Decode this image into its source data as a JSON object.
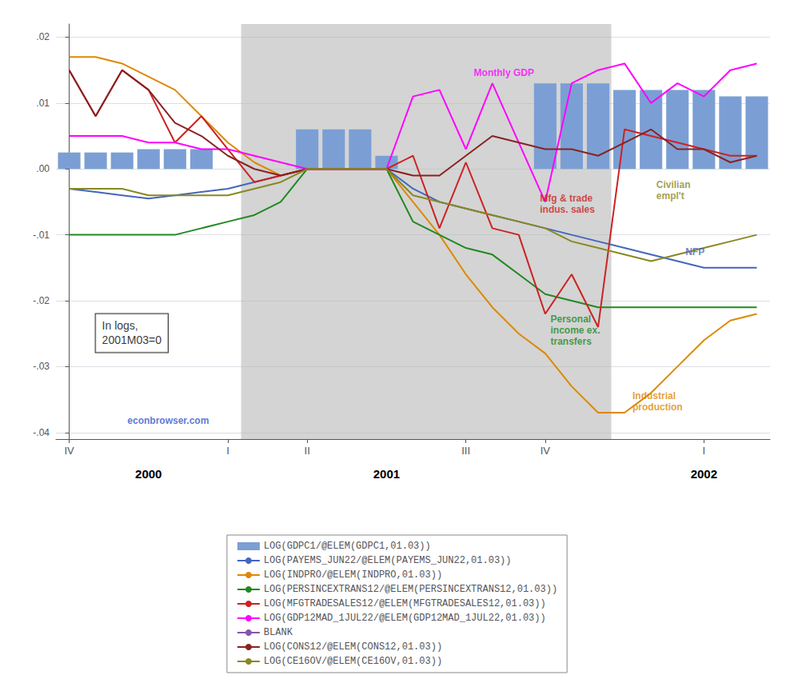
{
  "chart_data": {
    "type": "line",
    "xlim": [
      -0.5,
      26.5
    ],
    "xticks": [
      {
        "value": 0,
        "label": "IV"
      },
      {
        "value": 6,
        "label": "I"
      },
      {
        "value": 9,
        "label": "II"
      },
      {
        "value": 15,
        "label": "III"
      },
      {
        "value": 18,
        "label": "IV"
      },
      {
        "value": 24,
        "label": "I"
      }
    ],
    "x2ticks": [
      {
        "value": 3,
        "label": "2000"
      },
      {
        "value": 12,
        "label": "2001"
      },
      {
        "value": 24,
        "label": "2002"
      }
    ],
    "ylim": [
      -0.041,
      0.022
    ],
    "yticks": [
      {
        "value": -0.04,
        "label": "-.04"
      },
      {
        "value": -0.03,
        "label": "-.03"
      },
      {
        "value": -0.02,
        "label": "-.02"
      },
      {
        "value": -0.01,
        "label": "-.01"
      },
      {
        "value": 0.0,
        "label": ".00"
      },
      {
        "value": 0.01,
        "label": ".01"
      },
      {
        "value": 0.02,
        "label": ".02"
      }
    ],
    "grid": true,
    "legend": "bottom",
    "bands": [
      {
        "from": 6.5,
        "to": 20.5,
        "color": "#b8b8b8"
      }
    ],
    "annotations": [
      {
        "text": "Monthly GDP",
        "x": 15.3,
        "y": 0.0138,
        "color": "#ff00ff"
      },
      {
        "text": "Mfg & trade\nindus. sales",
        "x": 17.8,
        "y": -0.007,
        "color": "#cc2222"
      },
      {
        "text": "Civilian\nempl't",
        "x": 22.2,
        "y": -0.005,
        "color": "#888822"
      },
      {
        "text": "NFP",
        "x": 23.3,
        "y": -0.0135,
        "color": "#4466bb"
      },
      {
        "text": "Personal\nincome ex.\ntransfers",
        "x": 18.2,
        "y": -0.027,
        "color": "#228822"
      },
      {
        "text": "Industrial\nproduction",
        "x": 21.3,
        "y": -0.037,
        "color": "#dd8800"
      },
      {
        "text": "In logs,\n2001M03=0",
        "x": 1.0,
        "y": -0.022
      },
      {
        "text": "econbrowser.com",
        "x": 2.2,
        "y": -0.039,
        "color": "#3355cc"
      }
    ],
    "series": [
      {
        "name": "LOG(GDPC1/@ELEM(GDPC1,01.03))",
        "type": "bar",
        "color": "#7b9fd4",
        "x": [
          0,
          1,
          2,
          3,
          4,
          5,
          9,
          10,
          11,
          12,
          18,
          19,
          20,
          21,
          22,
          23,
          24,
          25,
          26
        ],
        "values": [
          0.0025,
          0.0025,
          0.0025,
          0.003,
          0.003,
          0.003,
          0.006,
          0.006,
          0.006,
          0.002,
          0.013,
          0.013,
          0.013,
          0.012,
          0.012,
          0.012,
          0.012,
          0.011,
          0.011
        ]
      },
      {
        "name": "LOG(PAYEMS_JUN22/@ELEM(PAYEMS_JUN22,01.03))",
        "type": "line",
        "color": "#4466bb",
        "x": [
          0,
          1,
          2,
          3,
          4,
          5,
          6,
          7,
          8,
          9,
          10,
          11,
          12,
          13,
          14,
          15,
          16,
          17,
          18,
          19,
          20,
          21,
          22,
          23,
          24,
          25,
          26
        ],
        "values": [
          -0.003,
          -0.0035,
          -0.004,
          -0.0045,
          -0.004,
          -0.0035,
          -0.003,
          -0.002,
          -0.001,
          0.0,
          0.0,
          0.0,
          0.0,
          -0.003,
          -0.005,
          -0.006,
          -0.007,
          -0.008,
          -0.009,
          -0.01,
          -0.011,
          -0.012,
          -0.013,
          -0.014,
          -0.015,
          -0.015,
          -0.015
        ]
      },
      {
        "name": "LOG(INDPRO/@ELEM(INDPRO,01.03))",
        "type": "line",
        "color": "#dd8800",
        "x": [
          0,
          1,
          2,
          3,
          4,
          5,
          6,
          7,
          8,
          9,
          10,
          11,
          12,
          13,
          14,
          15,
          16,
          17,
          18,
          19,
          20,
          21,
          22,
          23,
          24,
          25,
          26
        ],
        "values": [
          0.017,
          0.017,
          0.016,
          0.014,
          0.012,
          0.008,
          0.004,
          0.001,
          -0.001,
          0.0,
          0.0,
          0.0,
          0.0,
          -0.005,
          -0.01,
          -0.016,
          -0.021,
          -0.025,
          -0.028,
          -0.033,
          -0.037,
          -0.037,
          -0.034,
          -0.03,
          -0.026,
          -0.023,
          -0.022
        ]
      },
      {
        "name": "LOG(PERSINCEXTRANS12/@ELEM(PERSINCEXTRANS12,01.03))",
        "type": "line",
        "color": "#228822",
        "x": [
          0,
          1,
          2,
          3,
          4,
          5,
          6,
          7,
          8,
          9,
          10,
          11,
          12,
          13,
          14,
          15,
          16,
          17,
          18,
          19,
          20,
          21,
          22,
          23,
          24,
          25,
          26
        ],
        "values": [
          -0.01,
          -0.01,
          -0.01,
          -0.01,
          -0.01,
          -0.009,
          -0.008,
          -0.007,
          -0.005,
          0.0,
          0.0,
          0.0,
          0.0,
          -0.008,
          -0.01,
          -0.012,
          -0.013,
          -0.016,
          -0.019,
          -0.02,
          -0.021,
          -0.021,
          -0.021,
          -0.021,
          -0.021,
          -0.021,
          -0.021
        ]
      },
      {
        "name": "LOG(MFGTRADESALES12/@ELEM(MFGTRADESALES12,01.03))",
        "type": "line",
        "color": "#cc2222",
        "x": [
          0,
          1,
          2,
          3,
          4,
          5,
          6,
          7,
          8,
          9,
          10,
          11,
          12,
          13,
          14,
          15,
          16,
          17,
          18,
          19,
          20,
          21,
          22,
          23,
          24,
          25,
          26
        ],
        "values": [
          0.015,
          0.008,
          0.015,
          0.012,
          0.004,
          0.008,
          0.003,
          -0.002,
          -0.001,
          0.0,
          0.0,
          0.0,
          0.0,
          0.002,
          -0.009,
          0.001,
          -0.009,
          -0.01,
          -0.022,
          -0.016,
          -0.024,
          0.006,
          0.005,
          0.004,
          0.003,
          0.002,
          0.002
        ]
      },
      {
        "name": "LOG(GDP12MAD_1JUL22/@ELEM(GDP12MAD_1JUL22,01.03))",
        "type": "line",
        "color": "#ff00ff",
        "x": [
          0,
          1,
          2,
          3,
          4,
          5,
          6,
          7,
          8,
          9,
          10,
          11,
          12,
          13,
          14,
          15,
          16,
          17,
          18,
          19,
          20,
          21,
          22,
          23,
          24,
          25,
          26
        ],
        "values": [
          0.005,
          0.005,
          0.005,
          0.004,
          0.004,
          0.003,
          0.003,
          0.002,
          0.001,
          0.0,
          0.0,
          0.0,
          0.0,
          0.011,
          0.012,
          0.003,
          0.013,
          0.004,
          -0.005,
          0.013,
          0.015,
          0.016,
          0.01,
          0.013,
          0.011,
          0.015,
          0.016
        ]
      },
      {
        "name": "BLANK",
        "type": "line",
        "color": "#8855aa",
        "x": [],
        "values": []
      },
      {
        "name": "LOG(CONS12/@ELEM(CONS12,01.03))",
        "type": "line",
        "color": "#882222",
        "x": [
          0,
          1,
          2,
          3,
          4,
          5,
          6,
          7,
          8,
          9,
          10,
          11,
          12,
          13,
          14,
          15,
          16,
          17,
          18,
          19,
          20,
          21,
          22,
          23,
          24,
          25,
          26
        ],
        "values": [
          0.015,
          0.008,
          0.015,
          0.012,
          0.007,
          0.005,
          0.002,
          0.0,
          -0.001,
          0.0,
          0.0,
          0.0,
          0.0,
          -0.001,
          -0.001,
          0.002,
          0.005,
          0.004,
          0.003,
          0.003,
          0.002,
          0.004,
          0.006,
          0.003,
          0.003,
          0.001,
          0.002
        ]
      },
      {
        "name": "LOG(CE16OV/@ELEM(CE16OV,01.03))",
        "type": "line",
        "color": "#888822",
        "x": [
          0,
          1,
          2,
          3,
          4,
          5,
          6,
          7,
          8,
          9,
          10,
          11,
          12,
          13,
          14,
          15,
          16,
          17,
          18,
          19,
          20,
          21,
          22,
          23,
          24,
          25,
          26
        ],
        "values": [
          -0.003,
          -0.003,
          -0.003,
          -0.004,
          -0.004,
          -0.004,
          -0.004,
          -0.003,
          -0.002,
          0.0,
          0.0,
          0.0,
          0.0,
          -0.004,
          -0.005,
          -0.006,
          -0.007,
          -0.008,
          -0.009,
          -0.011,
          -0.012,
          -0.013,
          -0.014,
          -0.013,
          -0.012,
          -0.011,
          -0.01
        ]
      }
    ]
  }
}
